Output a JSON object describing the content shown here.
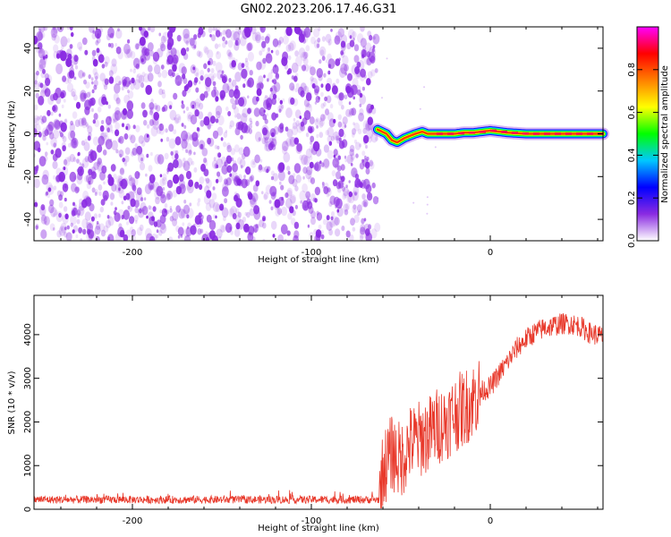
{
  "figure": {
    "title": "GN02.2023.206.17.46.G31"
  },
  "chart_data": [
    {
      "type": "heatmap",
      "title": "GN02.2023.206.17.46.G31",
      "xlabel": "Height of straight line (km)",
      "ylabel": "Frequency (Hz)",
      "xlim": [
        -255,
        63
      ],
      "ylim": [
        -50,
        50
      ],
      "xticks": [
        -200,
        -100,
        0
      ],
      "yticks": [
        -40,
        -20,
        0,
        20,
        40
      ],
      "colorbar": {
        "label": "Normalized spectral amplitude",
        "range": [
          0,
          1
        ],
        "ticks": [
          0.0,
          0.2,
          0.4,
          0.6,
          0.8
        ],
        "colors": [
          "#ffffff",
          "#8a2be2",
          "#0000ff",
          "#00c8ff",
          "#00ff00",
          "#ffff00",
          "#ff8000",
          "#ff0000",
          "#ff00ff"
        ]
      },
      "noise_region_x": [
        -255,
        -63
      ],
      "noise_color": "#8a2be2",
      "signal_trace": {
        "x": [
          -63,
          -58,
          -55,
          -52,
          -48,
          -45,
          -42,
          -38,
          -35,
          -30,
          -25,
          -20,
          -15,
          -10,
          -5,
          0,
          5,
          10,
          20,
          30,
          40,
          50,
          63
        ],
        "y": [
          2,
          0,
          -3,
          -4,
          -2,
          -1,
          0,
          1,
          0,
          0,
          0,
          0,
          0.5,
          0.5,
          1,
          1.5,
          1,
          0.5,
          0,
          0,
          0,
          0,
          0
        ]
      }
    },
    {
      "type": "line",
      "xlabel": "Height of straight line (km)",
      "ylabel": "SNR (10 * v/v)",
      "xlim": [
        -255,
        63
      ],
      "ylim": [
        0,
        4900
      ],
      "xticks": [
        -200,
        -100,
        0
      ],
      "yticks": [
        0,
        1000,
        2000,
        3000,
        4000
      ],
      "color": "#e8392b",
      "grid": false,
      "envelope": {
        "x": [
          -255,
          -62,
          -60,
          -55,
          -50,
          -45,
          -40,
          -35,
          -30,
          -25,
          -20,
          -15,
          -10,
          -5,
          0,
          5,
          10,
          15,
          20,
          25,
          30,
          35,
          40,
          45,
          50,
          55,
          63
        ],
        "y": [
          220,
          220,
          900,
          1300,
          1100,
          1500,
          1600,
          1700,
          1900,
          2000,
          2200,
          2300,
          2500,
          2700,
          2800,
          3100,
          3400,
          3700,
          3900,
          4050,
          4150,
          4200,
          4250,
          4250,
          4200,
          4050,
          3950
        ]
      }
    }
  ]
}
